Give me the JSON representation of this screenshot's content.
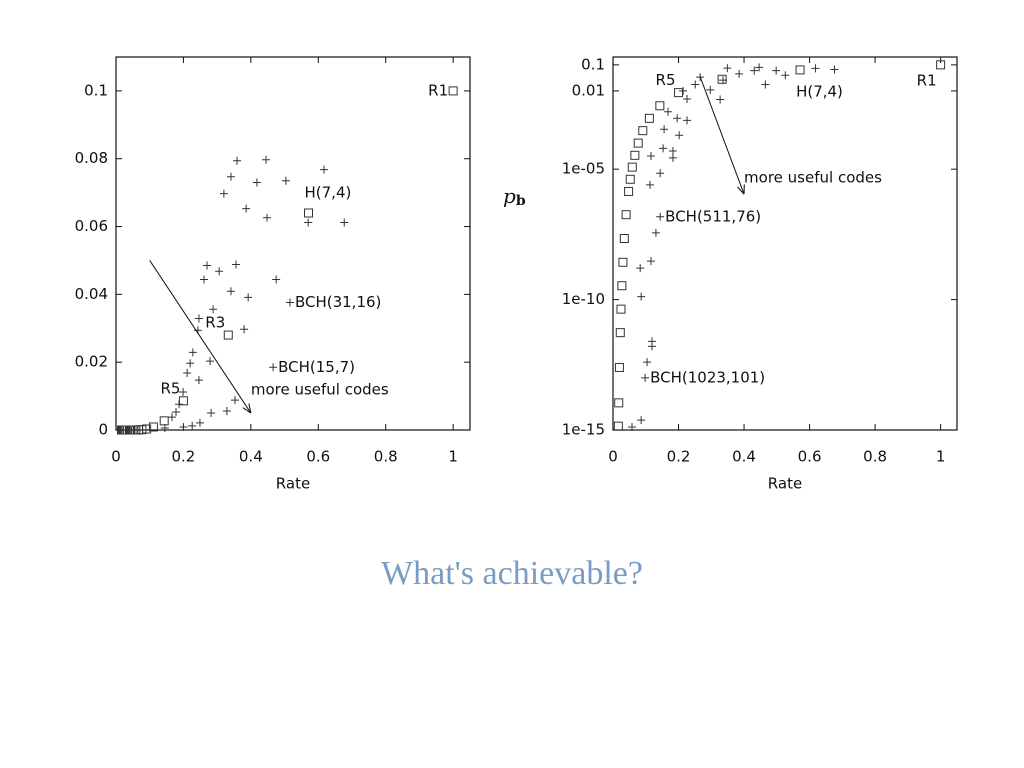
{
  "chart_data": [
    {
      "type": "scatter",
      "xlabel": "Rate",
      "xlim": [
        0,
        1.05
      ],
      "ylim": [
        0,
        0.11
      ],
      "xticks": [
        0,
        0.2,
        0.4,
        0.6,
        0.8,
        1
      ],
      "yticks": [
        0,
        0.02,
        0.04,
        0.06,
        0.08,
        0.1
      ],
      "series": [
        {
          "marker": "square",
          "color": "#333333",
          "x": [
            1,
            0.571,
            0.333,
            0.2,
            0.143,
            0.111,
            0.0909,
            0.0769,
            0.0667,
            0.0588,
            0.0526,
            0.0476,
            0.04,
            0.0345,
            0.0303,
            0.027,
            0.0244,
            0.0222,
            0.0196,
            0.0175,
            0.0164
          ],
          "values": [
            0.1,
            0.064,
            0.028,
            0.0086,
            0.0027,
            0.00089,
            0.0003,
            0.0001,
            3.4e-05,
            1.2e-05,
            4.1e-06,
            1.4e-06,
            1.8e-07,
            2.2e-08,
            2.7e-09,
            3.4e-10,
            4.3e-11,
            5.4e-12,
            2.5e-13,
            1.1e-14,
            1.4e-15
          ]
        },
        {
          "marker": "plus",
          "color": "#333333",
          "x": [
            0.32,
            0.341,
            0.359,
            0.418,
            0.445,
            0.386,
            0.448,
            0.504,
            0.617,
            0.57,
            0.677,
            0.516,
            0.475,
            0.392,
            0.356,
            0.27,
            0.306,
            0.341,
            0.261,
            0.288,
            0.246,
            0.243,
            0.38,
            0.228,
            0.22,
            0.211,
            0.279,
            0.246,
            0.466,
            0.199,
            0.187,
            0.178,
            0.166,
            0.353,
            0.329,
            0.282,
            0.249,
            0.226,
            0.2,
            0.145
          ],
          "values": [
            0.0697,
            0.0747,
            0.0794,
            0.073,
            0.0797,
            0.0653,
            0.0626,
            0.0735,
            0.0768,
            0.0612,
            0.0612,
            0.0376,
            0.0444,
            0.0391,
            0.0488,
            0.0485,
            0.0468,
            0.0409,
            0.0444,
            0.0356,
            0.0329,
            0.0294,
            0.0297,
            0.0229,
            0.0197,
            0.0168,
            0.0203,
            0.0147,
            0.0185,
            0.0112,
            0.0076,
            0.0053,
            0.0038,
            0.0088,
            0.0056,
            0.005,
            0.0021,
            0.0012,
            0.0009,
            0.0006
          ]
        }
      ],
      "annotations": [
        {
          "text": "R1",
          "x": 1,
          "y": 0.1,
          "anchor": "left"
        },
        {
          "text": "H(7,4)",
          "x": 0.571,
          "y": 0.064,
          "anchor": "above"
        },
        {
          "text": "BCH(31,16)",
          "x": 0.516,
          "y": 0.0376,
          "anchor": "right"
        },
        {
          "text": "R3",
          "x": 0.333,
          "y": 0.028,
          "anchor": "above-left"
        },
        {
          "text": "BCH(15,7)",
          "x": 0.466,
          "y": 0.0185,
          "anchor": "right"
        },
        {
          "text": "R5",
          "x": 0.2,
          "y": 0.0086,
          "anchor": "above-left"
        }
      ],
      "arrow": {
        "label": "more useful codes",
        "from": [
          0.1,
          0.05
        ],
        "to": [
          0.4,
          0.005
        ]
      }
    },
    {
      "type": "scatter",
      "xlabel": "Rate",
      "ylabel": "p",
      "ylabel_subscript": "b",
      "log_y": true,
      "xlim": [
        0,
        1.05
      ],
      "ylim": [
        1e-15,
        0.2
      ],
      "xticks": [
        0,
        0.2,
        0.4,
        0.6,
        0.8,
        1
      ],
      "yticks": [
        {
          "value": 1e-15,
          "label": "1e-15"
        },
        {
          "value": 1e-10,
          "label": "1e-10"
        },
        {
          "value": 1e-05,
          "label": "1e-05"
        },
        0.01,
        0.1
      ],
      "series": [
        {
          "marker": "square",
          "color": "#333333",
          "x": [
            1,
            0.571,
            0.333,
            0.2,
            0.143,
            0.111,
            0.0909,
            0.0769,
            0.0667,
            0.0588,
            0.0526,
            0.0476,
            0.04,
            0.0345,
            0.0303,
            0.027,
            0.0244,
            0.0222,
            0.0196,
            0.0175,
            0.0164
          ],
          "values": [
            0.1,
            0.064,
            0.028,
            0.0086,
            0.0027,
            0.00089,
            0.0003,
            0.0001,
            3.4e-05,
            1.2e-05,
            4.1e-06,
            1.4e-06,
            1.8e-07,
            2.2e-08,
            2.7e-09,
            3.4e-10,
            4.3e-11,
            5.4e-12,
            2.5e-13,
            1.1e-14,
            1.4e-15
          ]
        },
        {
          "marker": "plus",
          "color": "#333333",
          "x": [
            0.144,
            0.098,
            0.131,
            0.116,
            0.083,
            0.086,
            0.119,
            0.119,
            0.104,
            0.086,
            0.058,
            0.113,
            0.144,
            0.183,
            0.183,
            0.116,
            0.153,
            0.202,
            0.226,
            0.196,
            0.156,
            0.168,
            0.327,
            0.297,
            0.336,
            0.385,
            0.431,
            0.465,
            0.498,
            0.526,
            0.618,
            0.676,
            0.446,
            0.349,
            0.251,
            0.266,
            0.226,
            0.214
          ],
          "values": [
            1.5e-07,
            1e-13,
            3.6e-08,
            3e-09,
            1.6e-09,
            1.3e-10,
            2.5e-12,
            1.6e-12,
            4e-13,
            2.4e-15,
            1.3e-15,
            2.5e-06,
            7e-06,
            5e-05,
            2.7e-05,
            3.2e-05,
            6.3e-05,
            0.0002,
            0.00074,
            0.0009,
            0.00034,
            0.0016,
            0.0047,
            0.011,
            0.026,
            0.045,
            0.06,
            0.0176,
            0.06,
            0.04,
            0.073,
            0.066,
            0.08,
            0.075,
            0.0176,
            0.034,
            0.0049,
            0.01
          ]
        }
      ],
      "annotations": [
        {
          "text": "R1",
          "x": 1,
          "y": 0.1,
          "anchor": "below-left"
        },
        {
          "text": "R5",
          "x": 0.2,
          "y": 0.0086,
          "anchor": "above-left"
        },
        {
          "text": "H(7,4)",
          "x": 0.571,
          "y": 0.064,
          "anchor": "below"
        },
        {
          "text": "BCH(511,76)",
          "x": 0.144,
          "y": 1.5e-07,
          "anchor": "right"
        },
        {
          "text": "BCH(1023,101)",
          "x": 0.098,
          "y": 1e-13,
          "anchor": "right"
        }
      ],
      "arrow": {
        "label": "more useful codes",
        "from": [
          0.266,
          0.035
        ],
        "to": [
          0.4,
          1.1e-06
        ]
      }
    }
  ],
  "slide": {
    "caption": "What's achievable?"
  }
}
